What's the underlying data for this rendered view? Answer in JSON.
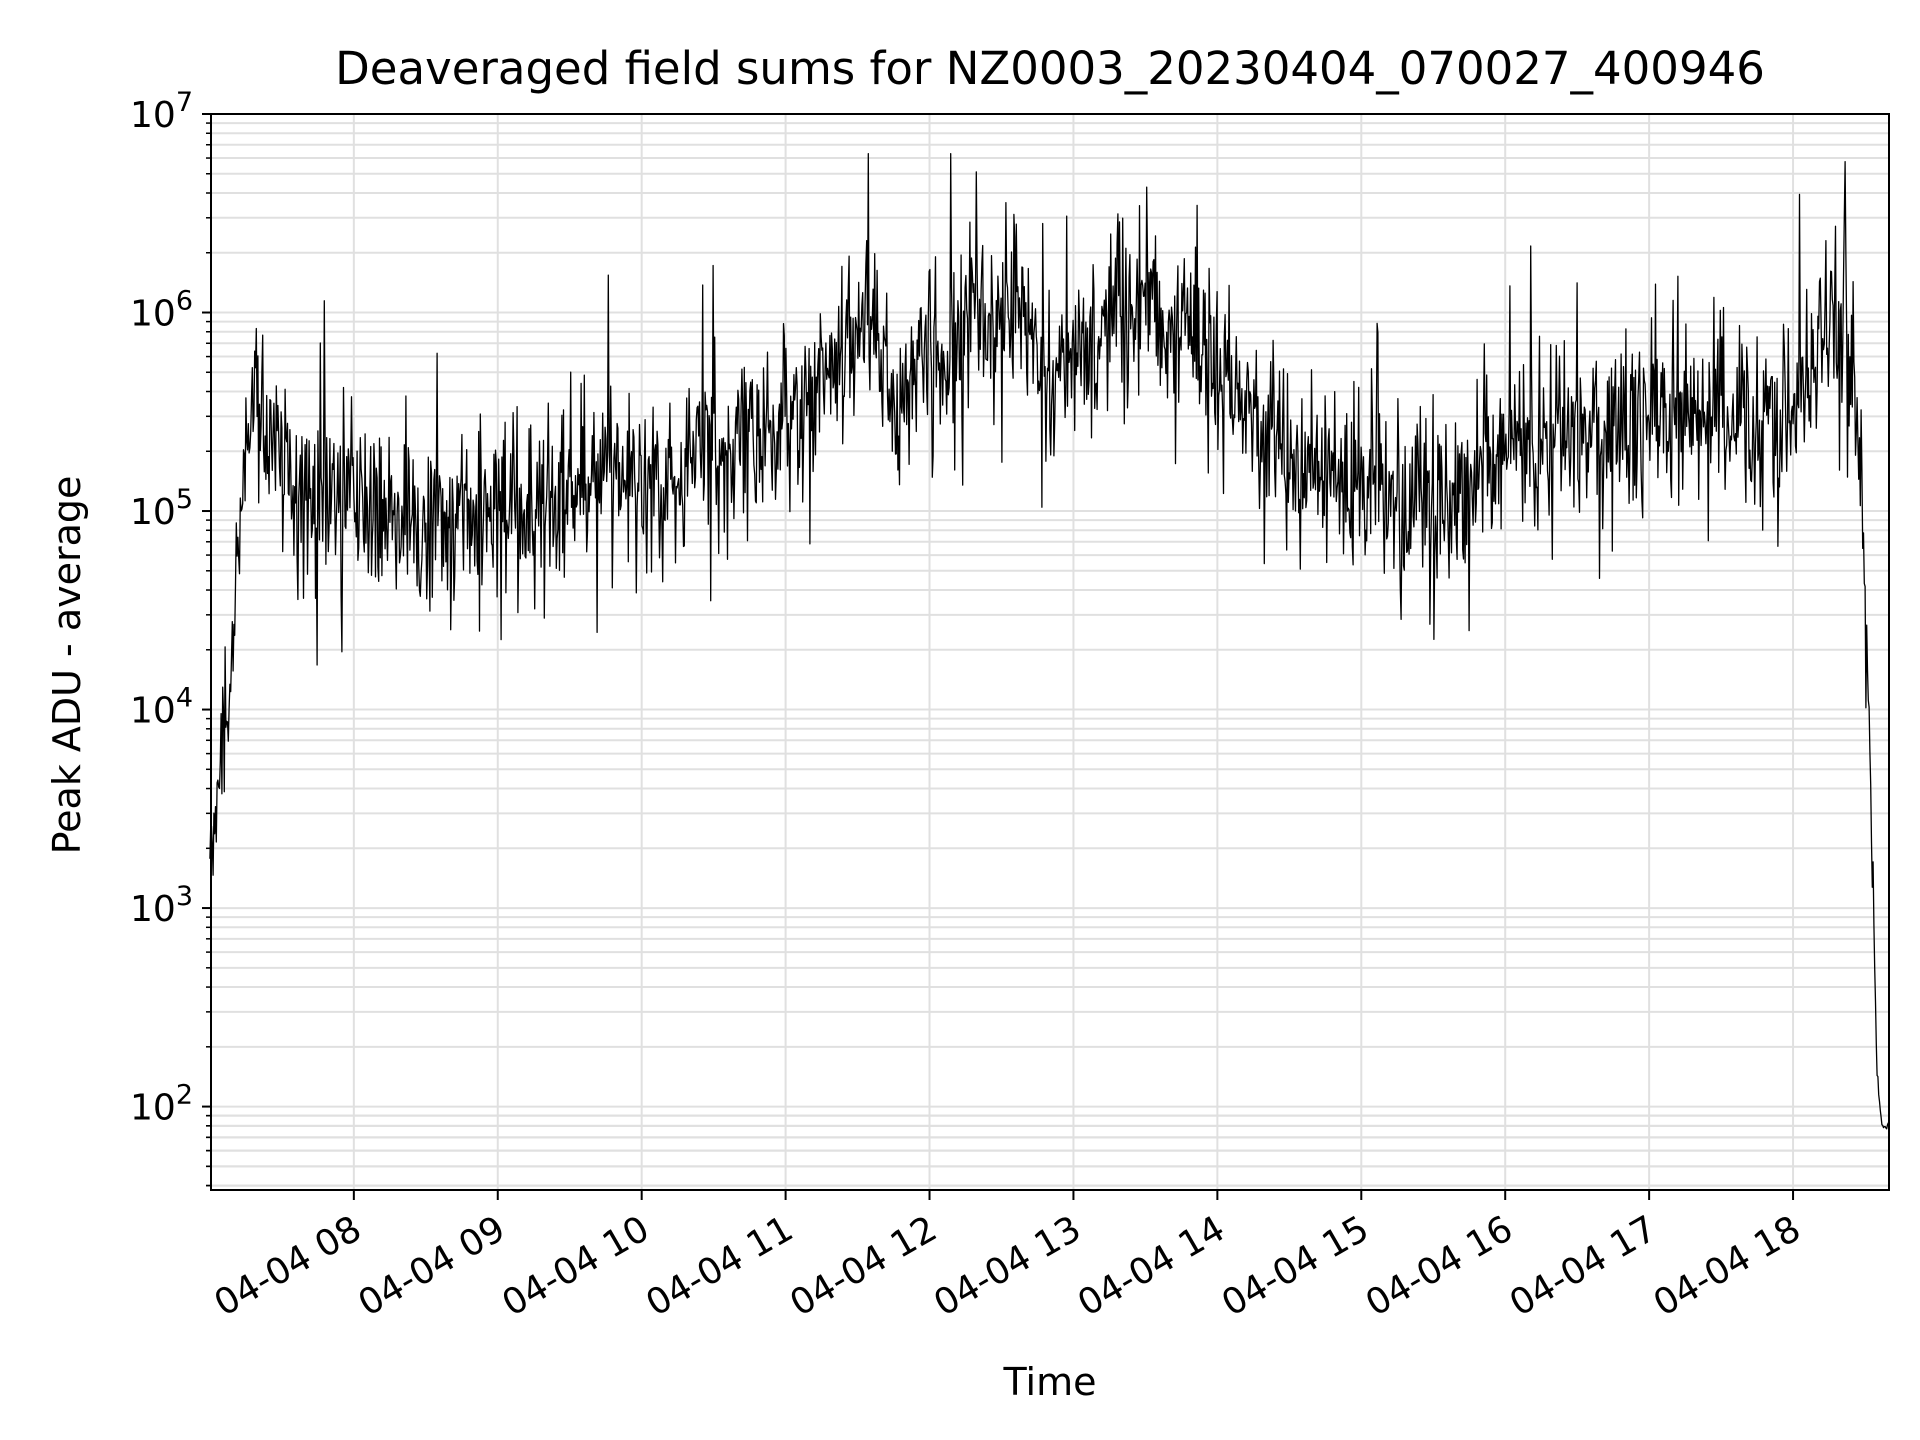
{
  "chart_data": {
    "type": "line",
    "title": "Deaveraged field sums for NZ0003_20230404_070027_400946",
    "xlabel": "Time",
    "ylabel": "Peak ADU - average",
    "yscale": "log",
    "ylim": [
      38,
      10000000
    ],
    "xlim": [
      "2023-04-04 07:00:27",
      "2023-04-04 18:40"
    ],
    "grid": true,
    "line_color": "#000000",
    "grid_color": "#e0e0e0",
    "y_ticks": [
      {
        "value": 100,
        "base": "10",
        "exp": "2"
      },
      {
        "value": 1000,
        "base": "10",
        "exp": "3"
      },
      {
        "value": 10000,
        "base": "10",
        "exp": "4"
      },
      {
        "value": 100000,
        "base": "10",
        "exp": "5"
      },
      {
        "value": 1000000,
        "base": "10",
        "exp": "6"
      },
      {
        "value": 10000000,
        "base": "10",
        "exp": "7"
      }
    ],
    "x_ticks": [
      {
        "value": "2023-04-04 08:00",
        "label": "04-04 08"
      },
      {
        "value": "2023-04-04 09:00",
        "label": "04-04 09"
      },
      {
        "value": "2023-04-04 10:00",
        "label": "04-04 10"
      },
      {
        "value": "2023-04-04 11:00",
        "label": "04-04 11"
      },
      {
        "value": "2023-04-04 12:00",
        "label": "04-04 12"
      },
      {
        "value": "2023-04-04 13:00",
        "label": "04-04 13"
      },
      {
        "value": "2023-04-04 14:00",
        "label": "04-04 14"
      },
      {
        "value": "2023-04-04 15:00",
        "label": "04-04 15"
      },
      {
        "value": "2023-04-04 16:00",
        "label": "04-04 16"
      },
      {
        "value": "2023-04-04 17:00",
        "label": "04-04 17"
      },
      {
        "value": "2023-04-04 18:00",
        "label": "04-04 18"
      }
    ],
    "series": [
      {
        "x": [
          "2023-04-04 07:00",
          "2023-04-04 07:02",
          "2023-04-04 07:04",
          "2023-04-04 07:06",
          "2023-04-04 07:08",
          "2023-04-04 07:10",
          "2023-04-04 07:13",
          "2023-04-04 07:16",
          "2023-04-04 07:20",
          "2023-04-04 07:25",
          "2023-04-04 07:30",
          "2023-04-04 07:35",
          "2023-04-04 07:40",
          "2023-04-04 07:50",
          "2023-04-04 08:00",
          "2023-04-04 08:15",
          "2023-04-04 08:30",
          "2023-04-04 08:45",
          "2023-04-04 09:00",
          "2023-04-04 09:15",
          "2023-04-04 09:30",
          "2023-04-04 09:45",
          "2023-04-04 10:00",
          "2023-04-04 10:15",
          "2023-04-04 10:30",
          "2023-04-04 10:45",
          "2023-04-04 11:00",
          "2023-04-04 11:15",
          "2023-04-04 11:30",
          "2023-04-04 11:36",
          "2023-04-04 11:45",
          "2023-04-04 12:00",
          "2023-04-04 12:15",
          "2023-04-04 12:30",
          "2023-04-04 12:38",
          "2023-04-04 12:45",
          "2023-04-04 13:00",
          "2023-04-04 13:15",
          "2023-04-04 13:30",
          "2023-04-04 13:45",
          "2023-04-04 14:00",
          "2023-04-04 14:15",
          "2023-04-04 14:30",
          "2023-04-04 14:45",
          "2023-04-04 15:00",
          "2023-04-04 15:15",
          "2023-04-04 15:30",
          "2023-04-04 15:45",
          "2023-04-04 16:00",
          "2023-04-04 16:15",
          "2023-04-04 16:30",
          "2023-04-04 16:45",
          "2023-04-04 17:00",
          "2023-04-04 17:15",
          "2023-04-04 17:30",
          "2023-04-04 17:45",
          "2023-04-04 18:00",
          "2023-04-04 18:10",
          "2023-04-04 18:15",
          "2023-04-04 18:20",
          "2023-04-04 18:25",
          "2023-04-04 18:28",
          "2023-04-04 18:31",
          "2023-04-04 18:33",
          "2023-04-04 18:35",
          "2023-04-04 18:37",
          "2023-04-04 18:40"
        ],
        "y": [
          2000,
          3000,
          5000,
          10000,
          12000,
          30000,
          150000,
          350000,
          400000,
          250000,
          150000,
          120000,
          100000,
          100000,
          100000,
          90000,
          90000,
          100000,
          100000,
          110000,
          130000,
          150000,
          130000,
          150000,
          200000,
          250000,
          300000,
          500000,
          700000,
          900000,
          300000,
          500000,
          800000,
          900000,
          1200000,
          400000,
          600000,
          1000000,
          1200000,
          900000,
          500000,
          300000,
          200000,
          150000,
          130000,
          120000,
          130000,
          140000,
          200000,
          200000,
          250000,
          280000,
          300000,
          350000,
          300000,
          300000,
          300000,
          500000,
          900000,
          800000,
          500000,
          150000,
          20000,
          2000,
          150,
          80,
          80
        ]
      }
    ]
  }
}
